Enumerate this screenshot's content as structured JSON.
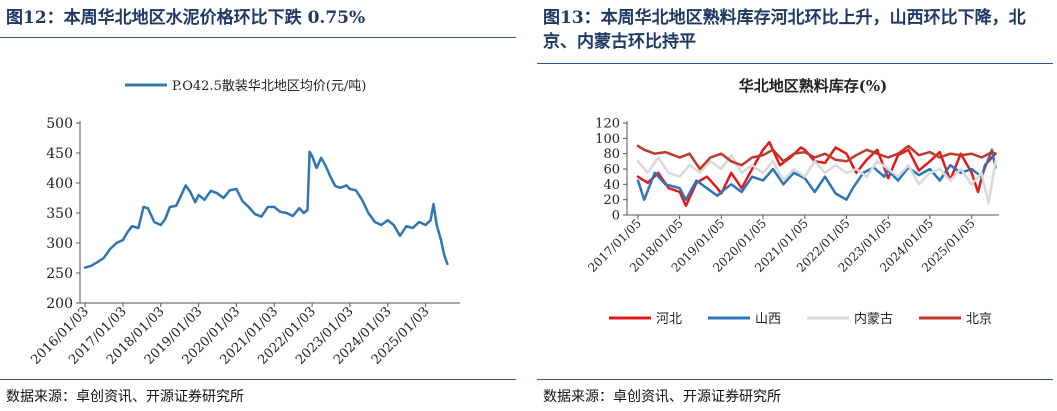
{
  "left": {
    "title": "图12：本周华北地区水泥价格环比下跌 0.75%",
    "source": "数据来源：卓创资讯、开源证券研究所",
    "chart_data": {
      "type": "line",
      "title": "",
      "xlabel": "",
      "ylabel": "",
      "ylim": [
        200,
        500
      ],
      "yticks": [
        200,
        250,
        300,
        350,
        400,
        450,
        500
      ],
      "xticks": [
        "2016/01/03",
        "2017/01/03",
        "2018/01/03",
        "2019/01/03",
        "2020/01/03",
        "2021/01/03",
        "2022/01/03",
        "2023/01/03",
        "2024/01/03",
        "2025/01/03"
      ],
      "legend_position": "top",
      "grid": false,
      "series": [
        {
          "name": "P.O42.5散装华北地区均价(元/吨)",
          "color": "#2e75b6",
          "points": [
            [
              "2016/01/03",
              259
            ],
            [
              "2016/03/01",
              262
            ],
            [
              "2016/05/01",
              268
            ],
            [
              "2016/07/01",
              275
            ],
            [
              "2016/09/01",
              290
            ],
            [
              "2016/11/01",
              300
            ],
            [
              "2017/01/03",
              305
            ],
            [
              "2017/02/15",
              318
            ],
            [
              "2017/04/01",
              328
            ],
            [
              "2017/06/01",
              325
            ],
            [
              "2017/07/20",
              360
            ],
            [
              "2017/09/01",
              358
            ],
            [
              "2017/11/01",
              335
            ],
            [
              "2018/01/03",
              330
            ],
            [
              "2018/02/15",
              340
            ],
            [
              "2018/04/01",
              360
            ],
            [
              "2018/06/01",
              362
            ],
            [
              "2018/07/15",
              378
            ],
            [
              "2018/09/01",
              396
            ],
            [
              "2018/10/15",
              385
            ],
            [
              "2018/12/01",
              368
            ],
            [
              "2019/01/03",
              380
            ],
            [
              "2019/03/01",
              372
            ],
            [
              "2019/05/01",
              387
            ],
            [
              "2019/07/01",
              383
            ],
            [
              "2019/09/01",
              375
            ],
            [
              "2019/11/01",
              388
            ],
            [
              "2020/01/03",
              390
            ],
            [
              "2020/03/01",
              370
            ],
            [
              "2020/05/01",
              360
            ],
            [
              "2020/07/01",
              348
            ],
            [
              "2020/09/01",
              344
            ],
            [
              "2020/11/01",
              360
            ],
            [
              "2021/01/03",
              360
            ],
            [
              "2021/03/01",
              352
            ],
            [
              "2021/05/01",
              350
            ],
            [
              "2021/07/01",
              345
            ],
            [
              "2021/09/01",
              358
            ],
            [
              "2021/10/15",
              350
            ],
            [
              "2021/11/20",
              355
            ],
            [
              "2021/12/10",
              452
            ],
            [
              "2022/01/03",
              445
            ],
            [
              "2022/02/15",
              425
            ],
            [
              "2022/04/01",
              442
            ],
            [
              "2022/05/15",
              428
            ],
            [
              "2022/07/01",
              410
            ],
            [
              "2022/08/15",
              395
            ],
            [
              "2022/10/01",
              392
            ],
            [
              "2022/12/01",
              396
            ],
            [
              "2023/01/03",
              390
            ],
            [
              "2023/03/01",
              388
            ],
            [
              "2023/05/01",
              372
            ],
            [
              "2023/07/01",
              350
            ],
            [
              "2023/09/01",
              335
            ],
            [
              "2023/11/01",
              330
            ],
            [
              "2024/01/03",
              338
            ],
            [
              "2024/03/01",
              330
            ],
            [
              "2024/05/01",
              312
            ],
            [
              "2024/07/01",
              328
            ],
            [
              "2024/09/01",
              325
            ],
            [
              "2024/11/01",
              335
            ],
            [
              "2025/01/03",
              330
            ],
            [
              "2025/02/20",
              338
            ],
            [
              "2025/03/20",
              365
            ],
            [
              "2025/04/20",
              330
            ],
            [
              "2025/06/01",
              305
            ],
            [
              "2025/07/01",
              280
            ],
            [
              "2025/08/01",
              265
            ]
          ]
        }
      ]
    }
  },
  "right": {
    "title": "图13：本周华北地区熟料库存河北环比上升，山西环比下降，北京、内蒙古环比持平",
    "source": "数据来源：卓创资讯、开源证券研究所",
    "chart_data": {
      "type": "line",
      "title": "华北地区熟料库存(%)",
      "xlabel": "",
      "ylabel": "",
      "ylim": [
        0,
        120
      ],
      "yticks": [
        0,
        20,
        40,
        60,
        80,
        100,
        120
      ],
      "xticks": [
        "2017/01/05",
        "2018/01/05",
        "2019/01/05",
        "2020/01/05",
        "2021/01/05",
        "2022/01/05",
        "2023/01/05",
        "2024/01/05",
        "2025/01/05"
      ],
      "legend_position": "bottom",
      "grid": false,
      "series": [
        {
          "name": "河北",
          "color": "#e31a1c",
          "points": [
            [
              "2017/01/05",
              50
            ],
            [
              "2017/04/01",
              42
            ],
            [
              "2017/07/01",
              55
            ],
            [
              "2017/10/01",
              35
            ],
            [
              "2018/01/05",
              30
            ],
            [
              "2018/03/01",
              12
            ],
            [
              "2018/06/01",
              42
            ],
            [
              "2018/09/01",
              50
            ],
            [
              "2018/12/01",
              35
            ],
            [
              "2019/01/05",
              28
            ],
            [
              "2019/04/01",
              55
            ],
            [
              "2019/07/01",
              35
            ],
            [
              "2019/10/01",
              60
            ],
            [
              "2020/01/05",
              85
            ],
            [
              "2020/03/01",
              95
            ],
            [
              "2020/06/01",
              65
            ],
            [
              "2020/09/01",
              75
            ],
            [
              "2020/12/01",
              88
            ],
            [
              "2021/01/05",
              85
            ],
            [
              "2021/04/01",
              70
            ],
            [
              "2021/07/01",
              68
            ],
            [
              "2021/10/01",
              88
            ],
            [
              "2022/01/05",
              80
            ],
            [
              "2022/04/01",
              55
            ],
            [
              "2022/07/01",
              72
            ],
            [
              "2022/10/01",
              85
            ],
            [
              "2023/01/05",
              48
            ],
            [
              "2023/04/01",
              78
            ],
            [
              "2023/07/01",
              85
            ],
            [
              "2023/10/01",
              58
            ],
            [
              "2024/01/05",
              70
            ],
            [
              "2024/04/01",
              82
            ],
            [
              "2024/07/01",
              45
            ],
            [
              "2024/10/01",
              80
            ],
            [
              "2025/01/05",
              55
            ],
            [
              "2025/03/01",
              30
            ],
            [
              "2025/05/01",
              65
            ],
            [
              "2025/07/01",
              75
            ],
            [
              "2025/08/01",
              80
            ]
          ]
        },
        {
          "name": "山西",
          "color": "#2e75b6",
          "points": [
            [
              "2017/01/05",
              45
            ],
            [
              "2017/03/01",
              20
            ],
            [
              "2017/06/01",
              55
            ],
            [
              "2017/09/01",
              40
            ],
            [
              "2018/01/05",
              35
            ],
            [
              "2018/03/01",
              20
            ],
            [
              "2018/06/01",
              45
            ],
            [
              "2018/09/01",
              35
            ],
            [
              "2018/12/01",
              25
            ],
            [
              "2019/01/05",
              30
            ],
            [
              "2019/04/01",
              40
            ],
            [
              "2019/07/01",
              30
            ],
            [
              "2019/10/01",
              50
            ],
            [
              "2020/01/05",
              45
            ],
            [
              "2020/04/01",
              60
            ],
            [
              "2020/07/01",
              40
            ],
            [
              "2020/10/01",
              55
            ],
            [
              "2021/01/05",
              48
            ],
            [
              "2021/04/01",
              30
            ],
            [
              "2021/07/01",
              50
            ],
            [
              "2021/10/01",
              28
            ],
            [
              "2022/01/05",
              20
            ],
            [
              "2022/03/01",
              35
            ],
            [
              "2022/06/01",
              55
            ],
            [
              "2022/09/01",
              62
            ],
            [
              "2022/12/01",
              50
            ],
            [
              "2023/01/05",
              58
            ],
            [
              "2023/04/01",
              45
            ],
            [
              "2023/07/01",
              62
            ],
            [
              "2023/10/01",
              52
            ],
            [
              "2024/01/05",
              60
            ],
            [
              "2024/04/01",
              45
            ],
            [
              "2024/07/01",
              65
            ],
            [
              "2024/10/01",
              55
            ],
            [
              "2025/01/05",
              60
            ],
            [
              "2025/04/01",
              50
            ],
            [
              "2025/07/01",
              85
            ],
            [
              "2025/08/01",
              62
            ]
          ]
        },
        {
          "name": "内蒙古",
          "color": "#d9d9d9",
          "points": [
            [
              "2017/01/05",
              70
            ],
            [
              "2017/04/01",
              55
            ],
            [
              "2017/07/01",
              75
            ],
            [
              "2017/10/01",
              55
            ],
            [
              "2018/01/05",
              50
            ],
            [
              "2018/04/01",
              65
            ],
            [
              "2018/07/01",
              55
            ],
            [
              "2018/10/01",
              70
            ],
            [
              "2019/01/05",
              60
            ],
            [
              "2019/04/01",
              78
            ],
            [
              "2019/07/01",
              55
            ],
            [
              "2019/10/01",
              65
            ],
            [
              "2020/01/05",
              55
            ],
            [
              "2020/04/01",
              70
            ],
            [
              "2020/07/01",
              45
            ],
            [
              "2020/10/01",
              60
            ],
            [
              "2021/01/05",
              50
            ],
            [
              "2021/04/01",
              70
            ],
            [
              "2021/07/01",
              55
            ],
            [
              "2021/10/01",
              65
            ],
            [
              "2022/01/05",
              55
            ],
            [
              "2022/04/01",
              60
            ],
            [
              "2022/07/01",
              50
            ],
            [
              "2022/10/01",
              70
            ],
            [
              "2023/01/05",
              60
            ],
            [
              "2023/04/01",
              50
            ],
            [
              "2023/07/01",
              65
            ],
            [
              "2023/10/01",
              40
            ],
            [
              "2024/01/05",
              55
            ],
            [
              "2024/04/01",
              60
            ],
            [
              "2024/07/01",
              45
            ],
            [
              "2024/10/01",
              60
            ],
            [
              "2025/01/05",
              40
            ],
            [
              "2025/04/01",
              55
            ],
            [
              "2025/06/01",
              15
            ],
            [
              "2025/08/01",
              70
            ]
          ]
        },
        {
          "name": "北京",
          "color": "#c0392b",
          "points": [
            [
              "2017/01/05",
              90
            ],
            [
              "2017/03/01",
              85
            ],
            [
              "2017/06/01",
              80
            ],
            [
              "2017/09/01",
              82
            ],
            [
              "2018/01/05",
              75
            ],
            [
              "2018/04/01",
              80
            ],
            [
              "2018/07/01",
              60
            ],
            [
              "2018/10/01",
              75
            ],
            [
              "2019/01/05",
              80
            ],
            [
              "2019/04/01",
              70
            ],
            [
              "2019/07/01",
              65
            ],
            [
              "2019/10/01",
              75
            ],
            [
              "2020/01/05",
              78
            ],
            [
              "2020/04/01",
              85
            ],
            [
              "2020/07/01",
              70
            ],
            [
              "2020/10/01",
              80
            ],
            [
              "2021/01/05",
              82
            ],
            [
              "2021/04/01",
              75
            ],
            [
              "2021/07/01",
              80
            ],
            [
              "2021/10/01",
              72
            ],
            [
              "2022/01/05",
              70
            ],
            [
              "2022/04/01",
              78
            ],
            [
              "2022/07/01",
              85
            ],
            [
              "2022/10/01",
              80
            ],
            [
              "2023/01/05",
              75
            ],
            [
              "2023/04/01",
              80
            ],
            [
              "2023/07/01",
              90
            ],
            [
              "2023/10/01",
              78
            ],
            [
              "2024/01/05",
              82
            ],
            [
              "2024/04/01",
              75
            ],
            [
              "2024/07/01",
              80
            ],
            [
              "2024/10/01",
              78
            ],
            [
              "2025/01/05",
              80
            ],
            [
              "2025/04/01",
              75
            ],
            [
              "2025/07/01",
              82
            ],
            [
              "2025/08/01",
              80
            ]
          ]
        }
      ]
    }
  }
}
